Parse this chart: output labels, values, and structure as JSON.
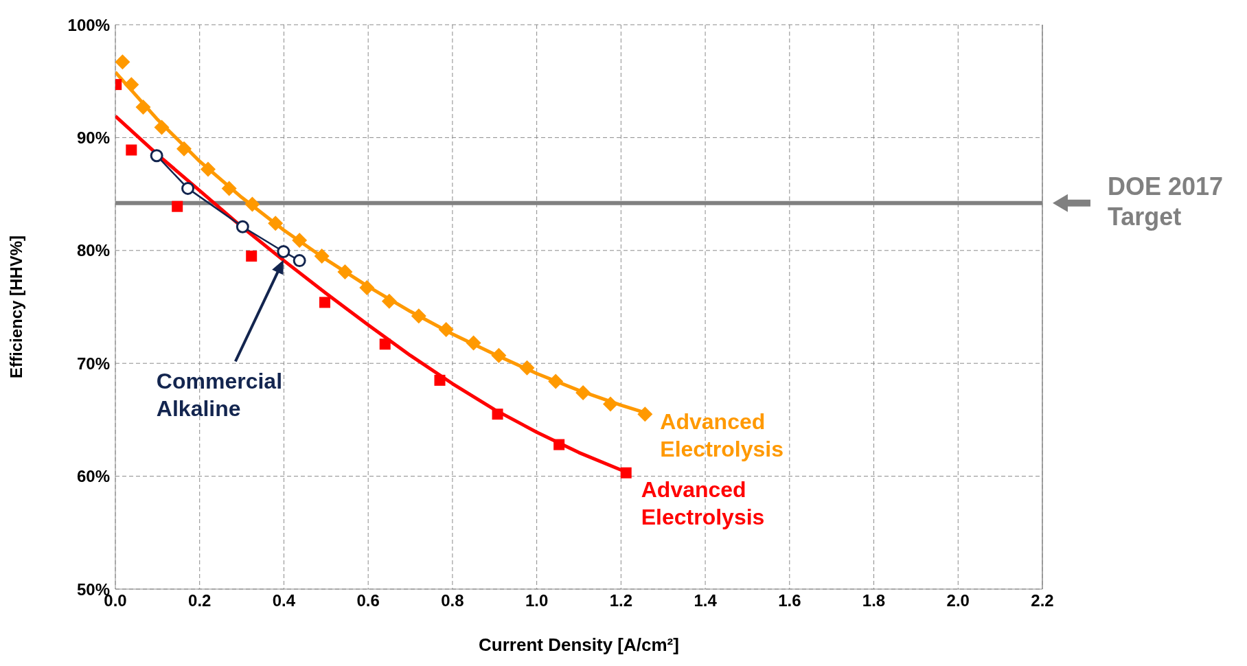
{
  "chart_data": {
    "type": "scatter",
    "xlabel": "Current Density [A/cm²]",
    "ylabel": "Efficiency [HHV%]",
    "xlim": [
      0,
      2.2
    ],
    "xticks": [
      {
        "value": 0,
        "label": "0.0"
      },
      {
        "value": 0.2,
        "label": "0.2"
      },
      {
        "value": 0.4,
        "label": "0.4"
      },
      {
        "value": 0.6,
        "label": "0.6"
      },
      {
        "value": 0.8,
        "label": "0.8"
      },
      {
        "value": 1.0,
        "label": "1.0"
      },
      {
        "value": 1.2,
        "label": "1.2"
      },
      {
        "value": 1.4,
        "label": "1.4"
      },
      {
        "value": 1.6,
        "label": "1.6"
      },
      {
        "value": 1.8,
        "label": "1.8"
      },
      {
        "value": 2.0,
        "label": "2.0"
      },
      {
        "value": 2.2,
        "label": "2.2"
      }
    ],
    "ylim": [
      50,
      100
    ],
    "yticks": [
      {
        "value": 50,
        "label": "50%"
      },
      {
        "value": 60,
        "label": "60%"
      },
      {
        "value": 70,
        "label": "70%"
      },
      {
        "value": 80,
        "label": "80%"
      },
      {
        "value": 90,
        "label": "90%"
      },
      {
        "value": 100,
        "label": "100%"
      }
    ],
    "grid": true,
    "ref_lines": [
      {
        "axis": "y",
        "value": 84.2,
        "label": "DOE 2017 Target",
        "color": "#808080"
      }
    ],
    "series": [
      {
        "type": "line",
        "color": "#ff9900",
        "marker": "none",
        "x": [
          0,
          0.1,
          0.2,
          0.3,
          0.4,
          0.5,
          0.6,
          0.7,
          0.8,
          0.9,
          1.0,
          1.1,
          1.2,
          1.26
        ],
        "values": [
          95.8,
          91.6,
          87.9,
          84.7,
          81.8,
          79.2,
          76.8,
          74.6,
          72.6,
          70.8,
          69.1,
          67.6,
          66.3,
          65.6
        ]
      },
      {
        "type": "line",
        "color": "#ff0000",
        "marker": "none",
        "x": [
          0,
          0.1,
          0.2,
          0.3,
          0.4,
          0.5,
          0.6,
          0.7,
          0.8,
          0.9,
          1.0,
          1.1,
          1.21
        ],
        "values": [
          91.9,
          88.5,
          85.3,
          82.1,
          79.1,
          76.2,
          73.4,
          70.7,
          68.2,
          65.9,
          63.9,
          62.1,
          60.4
        ]
      },
      {
        "name": "Advanced Electrolysis",
        "color": "#ff9900",
        "marker": "diamond",
        "x": [
          0.017,
          0.038,
          0.066,
          0.11,
          0.163,
          0.22,
          0.27,
          0.325,
          0.38,
          0.437,
          0.49,
          0.545,
          0.597,
          0.65,
          0.72,
          0.785,
          0.85,
          0.91,
          0.977,
          1.045,
          1.11,
          1.175,
          1.257
        ],
        "values": [
          96.7,
          94.7,
          92.7,
          90.9,
          89.0,
          87.2,
          85.5,
          84.1,
          82.4,
          80.9,
          79.5,
          78.1,
          76.7,
          75.5,
          74.2,
          73.0,
          71.8,
          70.7,
          69.6,
          68.4,
          67.4,
          66.4,
          65.5
        ]
      },
      {
        "name": "Advanced Electrolysis",
        "color": "#ff0000",
        "marker": "square",
        "x": [
          0.002,
          0.038,
          0.147,
          0.323,
          0.497,
          0.64,
          0.77,
          0.907,
          1.053,
          1.212
        ],
        "values": [
          94.7,
          88.9,
          83.9,
          79.5,
          75.4,
          71.7,
          68.5,
          65.5,
          62.8,
          60.3
        ]
      },
      {
        "type": "line",
        "name": "Commercial Alkaline",
        "color": "#13254f",
        "marker": "circle",
        "x": [
          0.098,
          0.172,
          0.302,
          0.399,
          0.437
        ],
        "values": [
          88.4,
          85.5,
          82.1,
          79.9,
          79.1
        ]
      }
    ]
  }
}
